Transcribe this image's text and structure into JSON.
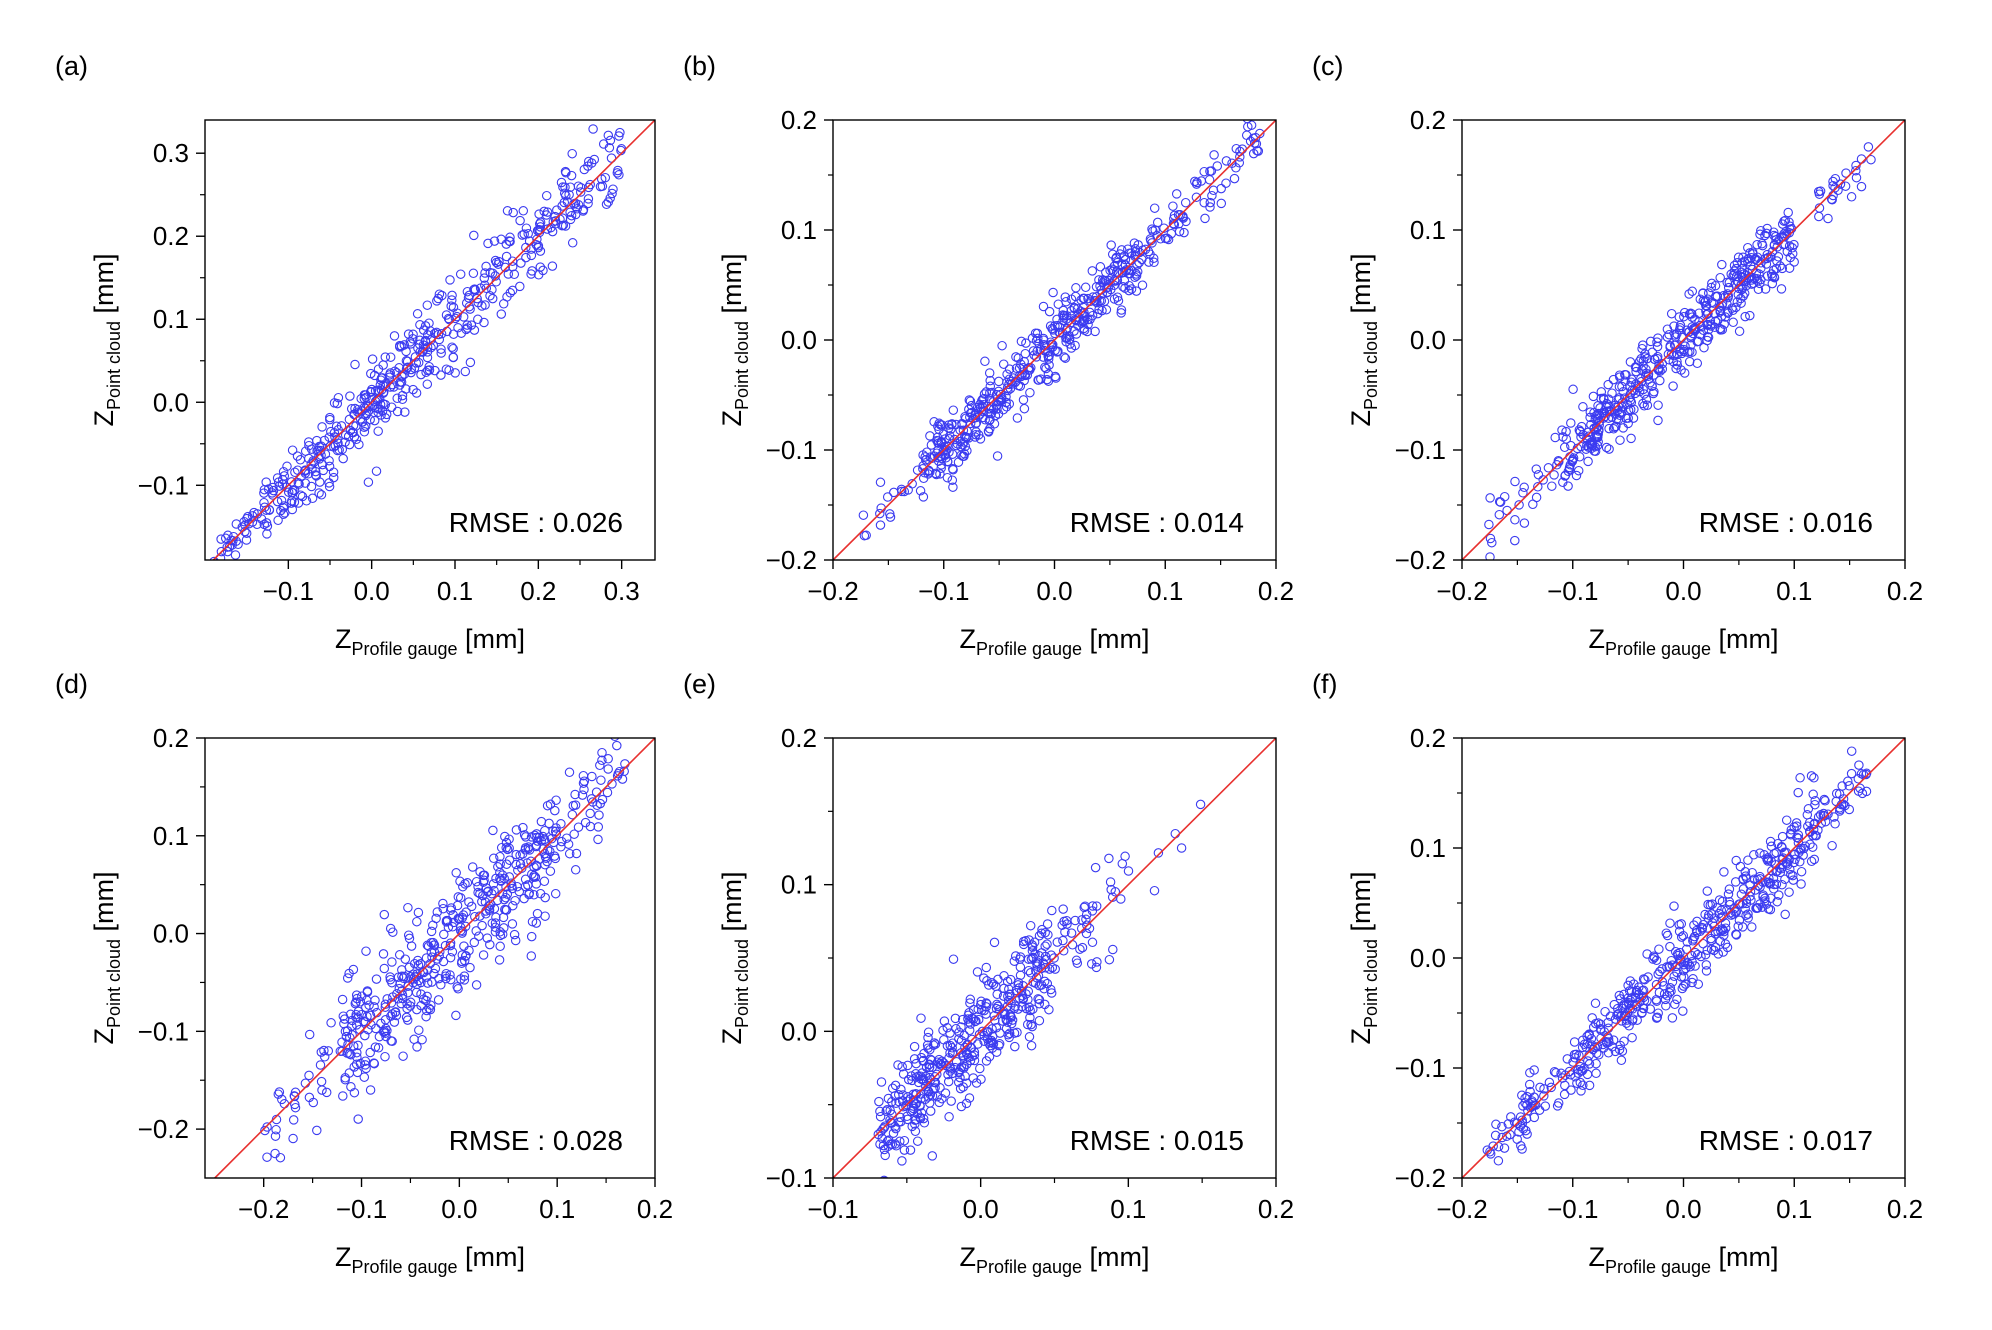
{
  "figure": {
    "colors": {
      "points": "#3b3bf0",
      "reference_line": "#e8312f",
      "axes": "#000000"
    }
  },
  "chart_data": [
    {
      "panel": "(a)",
      "type": "scatter",
      "xlabel_main": "Z",
      "xlabel_sub": "Profile gauge",
      "xlabel_unit": " [mm]",
      "ylabel_main": "Z",
      "ylabel_sub": "Point cloud",
      "ylabel_unit": " [mm]",
      "xlim": [
        -0.2,
        0.34
      ],
      "ylim": [
        -0.19,
        0.34
      ],
      "xticks": [
        -0.1,
        0.0,
        0.1,
        0.2,
        0.3
      ],
      "xtick_labels": [
        "−0.1",
        "0.0",
        "0.1",
        "0.2",
        "0.3"
      ],
      "yticks": [
        -0.1,
        0.0,
        0.1,
        0.2,
        0.3
      ],
      "ytick_labels": [
        "−0.1",
        "0.0",
        "0.1",
        "0.2",
        "0.3"
      ],
      "annotation": "RMSE : 0.026",
      "rmse": 0.026,
      "reference_line": "y = x",
      "point_segments": [
        {
          "x_range": [
            -0.19,
            -0.13
          ],
          "count": 35,
          "spread": 0.012
        },
        {
          "x_range": [
            -0.13,
            0.06
          ],
          "count": 260,
          "spread": 0.022
        },
        {
          "x_range": [
            0.06,
            0.17
          ],
          "count": 120,
          "spread": 0.028
        },
        {
          "x_range": [
            0.17,
            0.3
          ],
          "count": 110,
          "spread": 0.025
        }
      ]
    },
    {
      "panel": "(b)",
      "type": "scatter",
      "xlabel_main": "Z",
      "xlabel_sub": "Profile gauge",
      "xlabel_unit": " [mm]",
      "ylabel_main": "Z",
      "ylabel_sub": "Point cloud",
      "ylabel_unit": " [mm]",
      "xlim": [
        -0.2,
        0.2
      ],
      "ylim": [
        -0.2,
        0.2
      ],
      "xticks": [
        -0.2,
        -0.1,
        0.0,
        0.1,
        0.2
      ],
      "xtick_labels": [
        "−0.2",
        "−0.1",
        "0.0",
        "0.1",
        "0.2"
      ],
      "yticks": [
        -0.2,
        -0.1,
        0.0,
        0.1,
        0.2
      ],
      "ytick_labels": [
        "−0.2",
        "−0.1",
        "0.0",
        "0.1",
        "0.2"
      ],
      "annotation": "RMSE : 0.014",
      "rmse": 0.014,
      "reference_line": "y = x",
      "point_segments": [
        {
          "x_range": [
            -0.18,
            -0.12
          ],
          "count": 18,
          "spread": 0.01
        },
        {
          "x_range": [
            -0.12,
            0.08
          ],
          "count": 430,
          "spread": 0.014
        },
        {
          "x_range": [
            0.08,
            0.19
          ],
          "count": 80,
          "spread": 0.012
        }
      ]
    },
    {
      "panel": "(c)",
      "type": "scatter",
      "xlabel_main": "Z",
      "xlabel_sub": "Profile gauge",
      "xlabel_unit": " [mm]",
      "ylabel_main": "Z",
      "ylabel_sub": "Point cloud",
      "ylabel_unit": " [mm]",
      "xlim": [
        -0.2,
        0.2
      ],
      "ylim": [
        -0.2,
        0.2
      ],
      "xticks": [
        -0.2,
        -0.1,
        0.0,
        0.1,
        0.2
      ],
      "xtick_labels": [
        "−0.2",
        "−0.1",
        "0.0",
        "0.1",
        "0.2"
      ],
      "yticks": [
        -0.2,
        -0.1,
        0.0,
        0.1,
        0.2
      ],
      "ytick_labels": [
        "−0.2",
        "−0.1",
        "0.0",
        "0.1",
        "0.2"
      ],
      "annotation": "RMSE : 0.016",
      "rmse": 0.016,
      "reference_line": "y = x",
      "point_segments": [
        {
          "x_range": [
            -0.18,
            -0.11
          ],
          "count": 30,
          "spread": 0.014
        },
        {
          "x_range": [
            -0.11,
            0.1
          ],
          "count": 470,
          "spread": 0.016
        },
        {
          "x_range": [
            0.12,
            0.17
          ],
          "count": 25,
          "spread": 0.01
        }
      ]
    },
    {
      "panel": "(d)",
      "type": "scatter",
      "xlabel_main": "Z",
      "xlabel_sub": "Profile gauge",
      "xlabel_unit": " [mm]",
      "ylabel_main": "Z",
      "ylabel_sub": "Point cloud",
      "ylabel_unit": " [mm]",
      "xlim": [
        -0.26,
        0.2
      ],
      "ylim": [
        -0.25,
        0.2
      ],
      "xticks": [
        -0.2,
        -0.1,
        0.0,
        0.1,
        0.2
      ],
      "xtick_labels": [
        "−0.2",
        "−0.1",
        "0.0",
        "0.1",
        "0.2"
      ],
      "yticks": [
        -0.2,
        -0.1,
        0.0,
        0.1,
        0.2
      ],
      "ytick_labels": [
        "−0.2",
        "−0.1",
        "0.0",
        "0.1",
        "0.2"
      ],
      "annotation": "RMSE : 0.028",
      "rmse": 0.028,
      "reference_line": "y = x",
      "point_segments": [
        {
          "x_range": [
            -0.2,
            -0.12
          ],
          "count": 35,
          "spread": 0.02
        },
        {
          "x_range": [
            -0.12,
            0.1
          ],
          "count": 430,
          "spread": 0.03
        },
        {
          "x_range": [
            0.1,
            0.17
          ],
          "count": 50,
          "spread": 0.025
        }
      ]
    },
    {
      "panel": "(e)",
      "type": "scatter",
      "xlabel_main": "Z",
      "xlabel_sub": "Profile gauge",
      "xlabel_unit": " [mm]",
      "ylabel_main": "Z",
      "ylabel_sub": "Point cloud",
      "ylabel_unit": " [mm]",
      "xlim": [
        -0.1,
        0.2
      ],
      "ylim": [
        -0.1,
        0.2
      ],
      "xticks": [
        -0.1,
        0.0,
        0.1,
        0.2
      ],
      "xtick_labels": [
        "−0.1",
        "0.0",
        "0.1",
        "0.2"
      ],
      "yticks": [
        -0.1,
        0.0,
        0.1,
        0.2
      ],
      "ytick_labels": [
        "−0.1",
        "0.0",
        "0.1",
        "0.2"
      ],
      "annotation": "RMSE : 0.015",
      "rmse": 0.015,
      "reference_line": "y = x",
      "point_segments": [
        {
          "x_range": [
            -0.07,
            0.05
          ],
          "count": 420,
          "spread": 0.018
        },
        {
          "x_range": [
            0.05,
            0.09
          ],
          "count": 40,
          "spread": 0.02
        },
        {
          "x_range": [
            0.09,
            0.15
          ],
          "count": 10,
          "spread": 0.012
        }
      ]
    },
    {
      "panel": "(f)",
      "type": "scatter",
      "xlabel_main": "Z",
      "xlabel_sub": "Profile gauge",
      "xlabel_unit": " [mm]",
      "ylabel_main": "Z",
      "ylabel_sub": "Point cloud",
      "ylabel_unit": " [mm]",
      "xlim": [
        -0.2,
        0.2
      ],
      "ylim": [
        -0.2,
        0.2
      ],
      "xticks": [
        -0.2,
        -0.1,
        0.0,
        0.1,
        0.2
      ],
      "xtick_labels": [
        "−0.2",
        "−0.1",
        "0.0",
        "0.1",
        "0.2"
      ],
      "yticks": [
        -0.2,
        -0.1,
        0.0,
        0.1,
        0.2
      ],
      "ytick_labels": [
        "−0.2",
        "−0.1",
        "0.0",
        "0.1",
        "0.2"
      ],
      "annotation": "RMSE : 0.017",
      "rmse": 0.017,
      "reference_line": "y = x",
      "point_segments": [
        {
          "x_range": [
            -0.18,
            -0.1
          ],
          "count": 70,
          "spread": 0.012
        },
        {
          "x_range": [
            -0.1,
            0.12
          ],
          "count": 430,
          "spread": 0.018
        },
        {
          "x_range": [
            0.12,
            0.17
          ],
          "count": 40,
          "spread": 0.01
        }
      ]
    }
  ]
}
